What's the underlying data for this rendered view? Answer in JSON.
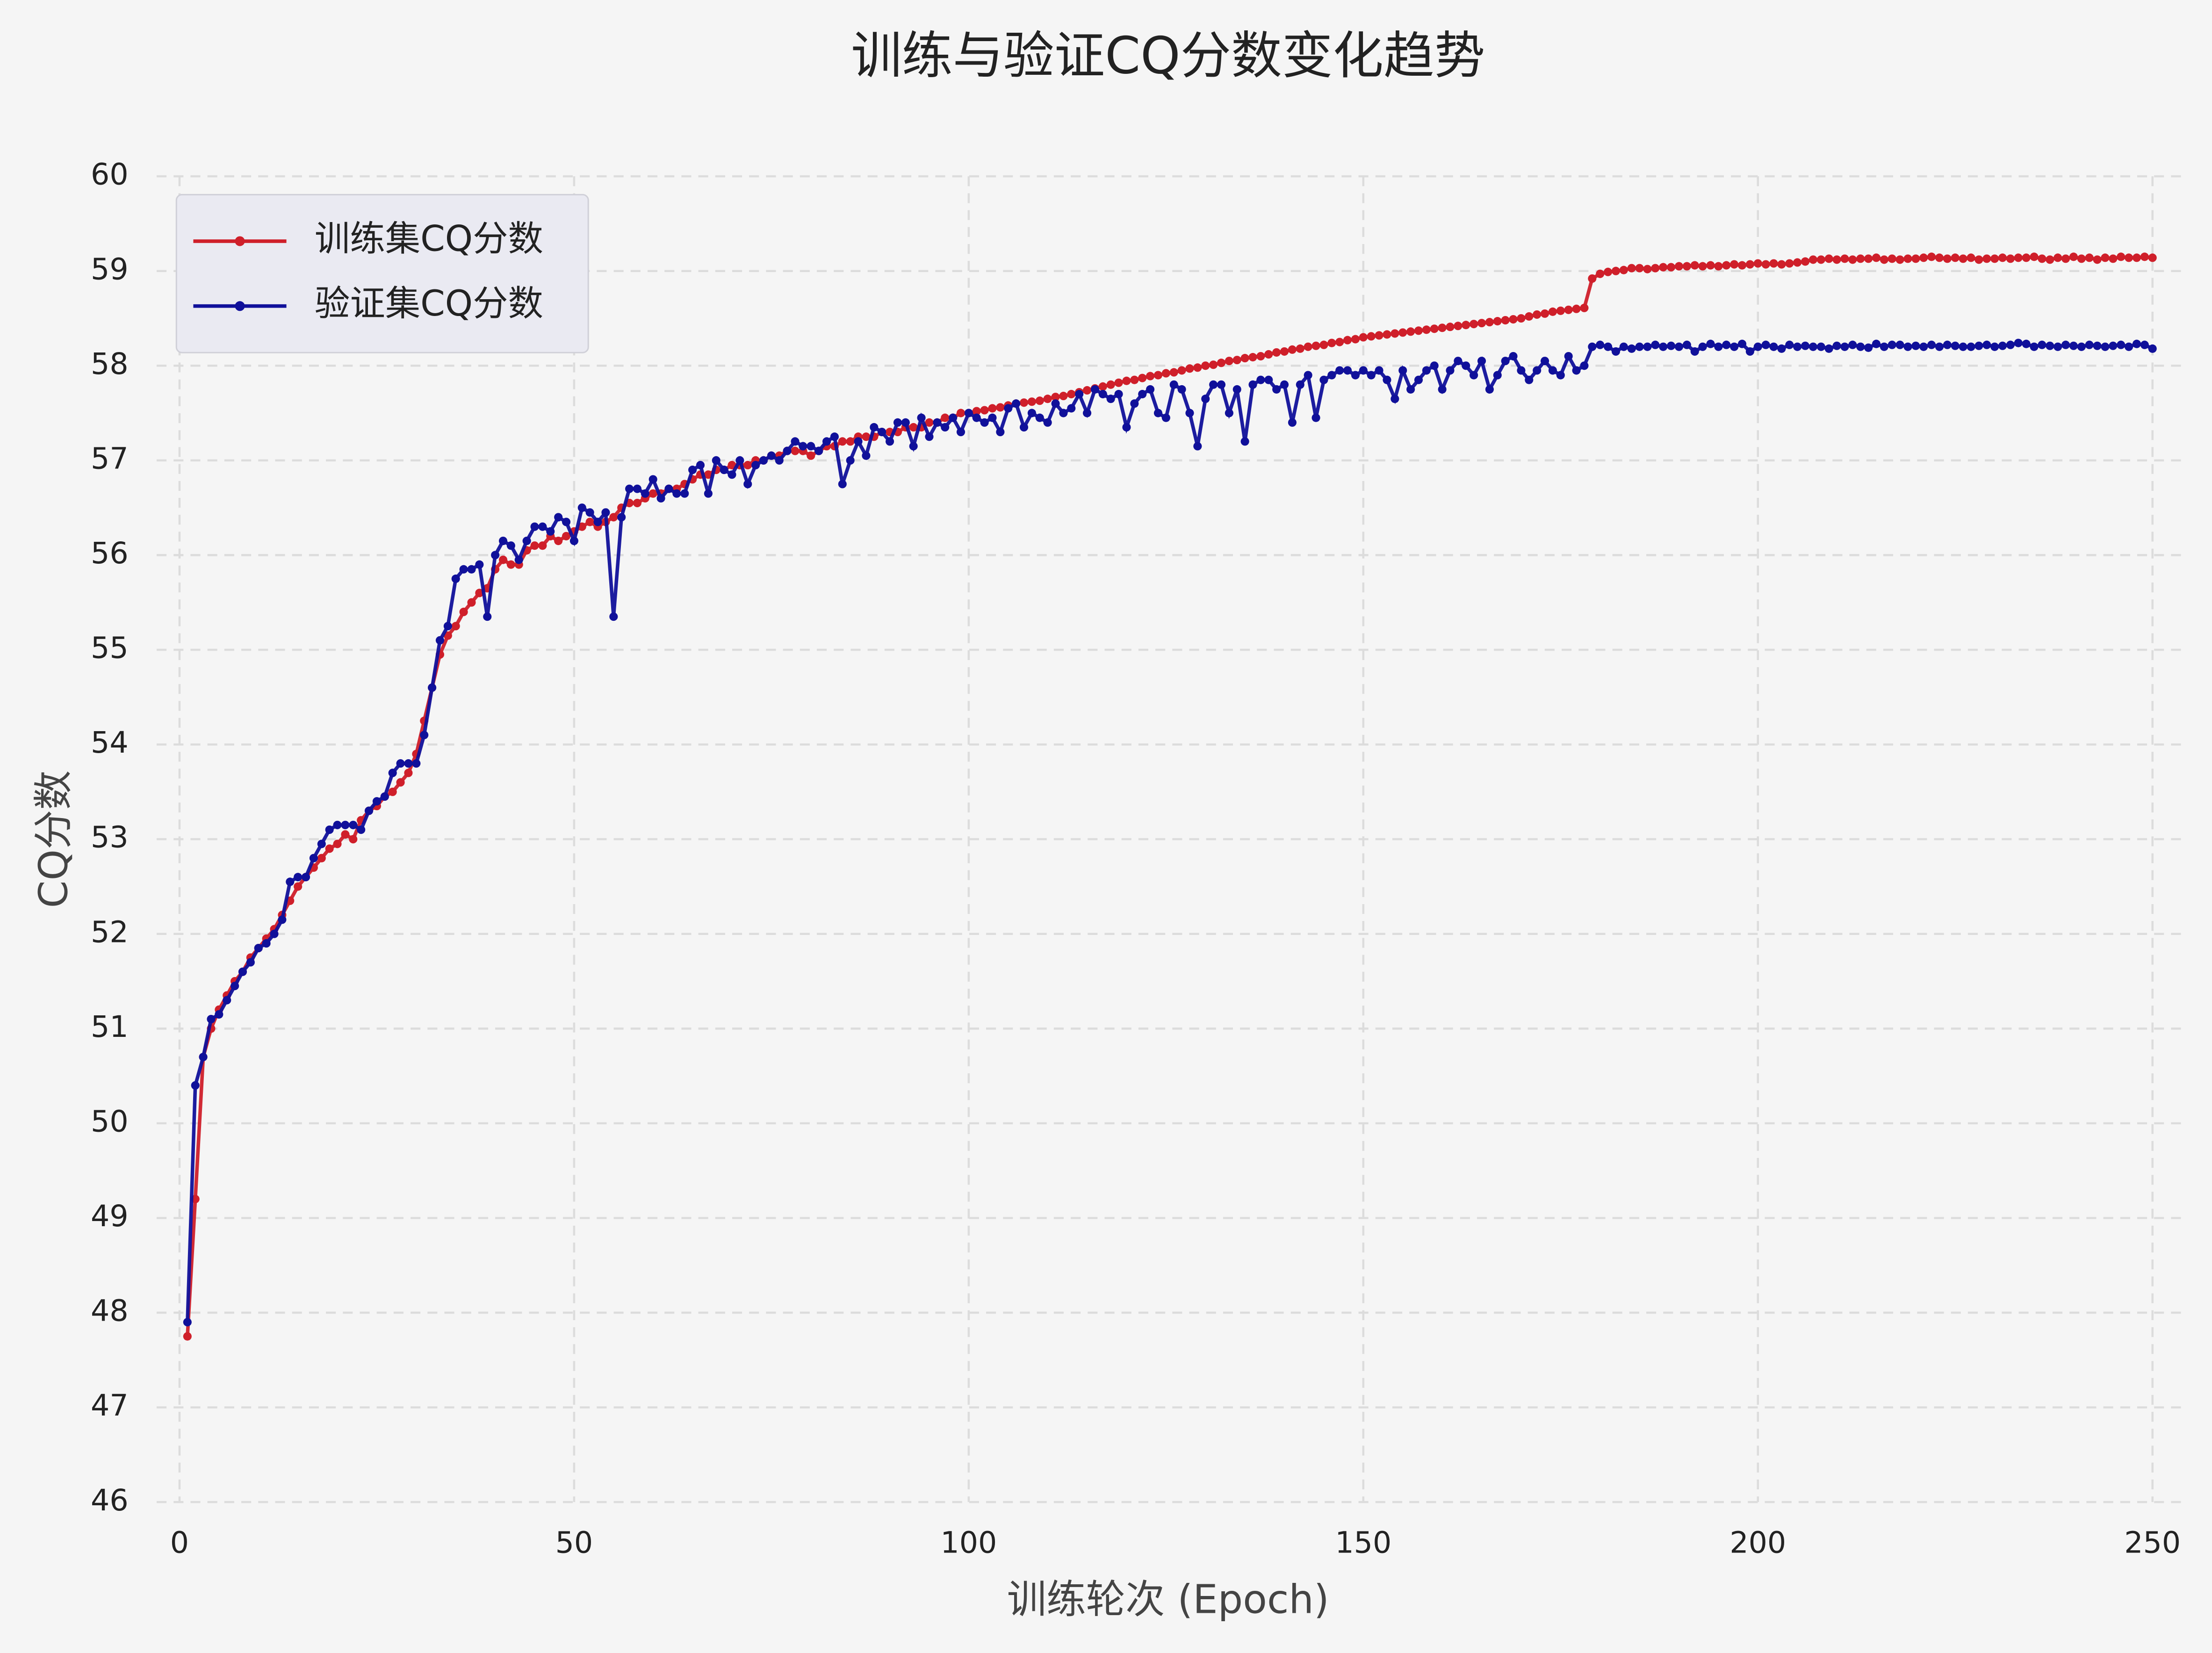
{
  "chart_data": {
    "type": "line",
    "title": "训练与验证CQ分数变化趋势",
    "x_label": "训练轮次 (Epoch)",
    "y_label": "CQ分数",
    "x": [
      1,
      2,
      3,
      4,
      5,
      6,
      7,
      8,
      9,
      10,
      11,
      12,
      13,
      14,
      15,
      16,
      17,
      18,
      19,
      20,
      21,
      22,
      23,
      24,
      25,
      26,
      27,
      28,
      29,
      30,
      31,
      32,
      33,
      34,
      35,
      36,
      37,
      38,
      39,
      40,
      41,
      42,
      43,
      44,
      45,
      46,
      47,
      48,
      49,
      50,
      51,
      52,
      53,
      54,
      55,
      56,
      57,
      58,
      59,
      60,
      61,
      62,
      63,
      64,
      65,
      66,
      67,
      68,
      69,
      70,
      71,
      72,
      73,
      74,
      75,
      76,
      77,
      78,
      79,
      80,
      81,
      82,
      83,
      84,
      85,
      86,
      87,
      88,
      89,
      90,
      91,
      92,
      93,
      94,
      95,
      96,
      97,
      98,
      99,
      100,
      101,
      102,
      103,
      104,
      105,
      106,
      107,
      108,
      109,
      110,
      111,
      112,
      113,
      114,
      115,
      116,
      117,
      118,
      119,
      120,
      121,
      122,
      123,
      124,
      125,
      126,
      127,
      128,
      129,
      130,
      131,
      132,
      133,
      134,
      135,
      136,
      137,
      138,
      139,
      140,
      141,
      142,
      143,
      144,
      145,
      146,
      147,
      148,
      149,
      150,
      151,
      152,
      153,
      154,
      155,
      156,
      157,
      158,
      159,
      160,
      161,
      162,
      163,
      164,
      165,
      166,
      167,
      168,
      169,
      170,
      171,
      172,
      173,
      174,
      175,
      176,
      177,
      178,
      179,
      180,
      181,
      182,
      183,
      184,
      185,
      186,
      187,
      188,
      189,
      190,
      191,
      192,
      193,
      194,
      195,
      196,
      197,
      198,
      199,
      200,
      201,
      202,
      203,
      204,
      205,
      206,
      207,
      208,
      209,
      210,
      211,
      212,
      213,
      214,
      215,
      216,
      217,
      218,
      219,
      220,
      221,
      222,
      223,
      224,
      225,
      226,
      227,
      228,
      229,
      230,
      231,
      232,
      233,
      234,
      235,
      236,
      237,
      238,
      239,
      240,
      241,
      242,
      243,
      244,
      245,
      246,
      247,
      248,
      249,
      250
    ],
    "series": [
      {
        "name": "训练集CQ分数",
        "color": "#cf1f2a",
        "values": [
          47.75,
          49.2,
          50.7,
          51.0,
          51.2,
          51.35,
          51.5,
          51.6,
          51.75,
          51.85,
          51.95,
          52.05,
          52.2,
          52.35,
          52.5,
          52.6,
          52.7,
          52.8,
          52.9,
          52.95,
          53.05,
          53.0,
          53.2,
          53.3,
          53.35,
          53.45,
          53.5,
          53.6,
          53.7,
          53.9,
          54.25,
          54.6,
          54.95,
          55.15,
          55.25,
          55.4,
          55.5,
          55.6,
          55.65,
          55.85,
          55.95,
          55.9,
          55.9,
          56.05,
          56.1,
          56.1,
          56.2,
          56.15,
          56.2,
          56.25,
          56.3,
          56.35,
          56.3,
          56.35,
          56.4,
          56.5,
          56.55,
          56.55,
          56.6,
          56.65,
          56.65,
          56.7,
          56.7,
          56.75,
          56.8,
          56.85,
          56.85,
          56.9,
          56.9,
          56.95,
          56.95,
          56.95,
          57.0,
          57.0,
          57.05,
          57.05,
          57.1,
          57.1,
          57.1,
          57.05,
          57.1,
          57.15,
          57.15,
          57.2,
          57.2,
          57.25,
          57.25,
          57.25,
          57.3,
          57.3,
          57.3,
          57.35,
          57.35,
          57.35,
          57.4,
          57.4,
          57.45,
          57.45,
          57.5,
          57.5,
          57.52,
          57.53,
          57.55,
          57.56,
          57.58,
          57.6,
          57.61,
          57.62,
          57.63,
          57.65,
          57.67,
          57.68,
          57.7,
          57.72,
          57.74,
          57.76,
          57.78,
          57.8,
          57.82,
          57.84,
          57.85,
          57.87,
          57.89,
          57.9,
          57.92,
          57.93,
          57.95,
          57.97,
          57.98,
          58.0,
          58.01,
          58.03,
          58.05,
          58.06,
          58.08,
          58.09,
          58.1,
          58.12,
          58.14,
          58.15,
          58.17,
          58.18,
          58.2,
          58.21,
          58.22,
          58.24,
          58.25,
          58.27,
          58.28,
          58.3,
          58.31,
          58.32,
          58.33,
          58.34,
          58.35,
          58.36,
          58.37,
          58.38,
          58.39,
          58.4,
          58.41,
          58.42,
          58.43,
          58.44,
          58.45,
          58.46,
          58.47,
          58.48,
          58.49,
          58.5,
          58.52,
          58.54,
          58.55,
          58.57,
          58.58,
          58.59,
          58.6,
          58.61,
          58.92,
          58.97,
          58.99,
          59.0,
          59.01,
          59.03,
          59.03,
          59.02,
          59.03,
          59.04,
          59.04,
          59.05,
          59.05,
          59.06,
          59.05,
          59.06,
          59.05,
          59.06,
          59.07,
          59.06,
          59.07,
          59.08,
          59.07,
          59.08,
          59.07,
          59.08,
          59.09,
          59.1,
          59.12,
          59.12,
          59.13,
          59.12,
          59.13,
          59.12,
          59.13,
          59.13,
          59.14,
          59.12,
          59.13,
          59.12,
          59.13,
          59.13,
          59.14,
          59.15,
          59.14,
          59.13,
          59.14,
          59.13,
          59.14,
          59.12,
          59.13,
          59.13,
          59.14,
          59.13,
          59.14,
          59.14,
          59.15,
          59.13,
          59.12,
          59.14,
          59.13,
          59.15,
          59.13,
          59.14,
          59.12,
          59.14,
          59.13,
          59.15,
          59.14,
          59.14,
          59.15,
          59.14
        ]
      },
      {
        "name": "验证集CQ分数",
        "color": "#10109a",
        "values": [
          47.9,
          50.4,
          50.7,
          51.1,
          51.15,
          51.3,
          51.45,
          51.6,
          51.7,
          51.85,
          51.9,
          52.0,
          52.15,
          52.55,
          52.6,
          52.6,
          52.8,
          52.95,
          53.1,
          53.15,
          53.15,
          53.15,
          53.1,
          53.3,
          53.4,
          53.45,
          53.7,
          53.8,
          53.8,
          53.8,
          54.1,
          54.6,
          55.1,
          55.25,
          55.75,
          55.85,
          55.85,
          55.9,
          55.35,
          56.0,
          56.15,
          56.1,
          55.95,
          56.15,
          56.3,
          56.3,
          56.25,
          56.4,
          56.35,
          56.15,
          56.5,
          56.45,
          56.35,
          56.45,
          55.35,
          56.4,
          56.7,
          56.7,
          56.65,
          56.8,
          56.6,
          56.7,
          56.65,
          56.65,
          56.9,
          56.95,
          56.65,
          57.0,
          56.9,
          56.85,
          57.0,
          56.75,
          56.95,
          57.0,
          57.05,
          57.0,
          57.1,
          57.2,
          57.15,
          57.15,
          57.1,
          57.2,
          57.25,
          56.75,
          57.0,
          57.2,
          57.05,
          57.35,
          57.3,
          57.2,
          57.4,
          57.4,
          57.15,
          57.45,
          57.25,
          57.4,
          57.35,
          57.45,
          57.3,
          57.5,
          57.45,
          57.4,
          57.45,
          57.3,
          57.55,
          57.6,
          57.35,
          57.5,
          57.45,
          57.4,
          57.6,
          57.5,
          57.55,
          57.7,
          57.5,
          57.75,
          57.7,
          57.65,
          57.7,
          57.35,
          57.6,
          57.7,
          57.75,
          57.5,
          57.45,
          57.8,
          57.75,
          57.5,
          57.15,
          57.65,
          57.8,
          57.8,
          57.5,
          57.75,
          57.2,
          57.8,
          57.85,
          57.85,
          57.75,
          57.8,
          57.4,
          57.8,
          57.9,
          57.45,
          57.85,
          57.9,
          57.95,
          57.95,
          57.9,
          57.95,
          57.9,
          57.95,
          57.85,
          57.65,
          57.95,
          57.75,
          57.85,
          57.95,
          58.0,
          57.75,
          57.95,
          58.05,
          58.0,
          57.9,
          58.05,
          57.75,
          57.9,
          58.05,
          58.1,
          57.95,
          57.85,
          57.95,
          58.05,
          57.95,
          57.9,
          58.1,
          57.95,
          58.0,
          58.2,
          58.22,
          58.2,
          58.15,
          58.2,
          58.18,
          58.2,
          58.2,
          58.22,
          58.2,
          58.21,
          58.2,
          58.22,
          58.15,
          58.2,
          58.23,
          58.2,
          58.22,
          58.2,
          58.23,
          58.15,
          58.2,
          58.22,
          58.2,
          58.18,
          58.22,
          58.2,
          58.21,
          58.2,
          58.2,
          58.18,
          58.21,
          58.2,
          58.22,
          58.2,
          58.19,
          58.23,
          58.2,
          58.22,
          58.22,
          58.2,
          58.21,
          58.2,
          58.22,
          58.2,
          58.22,
          58.21,
          58.2,
          58.2,
          58.21,
          58.22,
          58.2,
          58.21,
          58.22,
          58.24,
          58.23,
          58.2,
          58.22,
          58.21,
          58.2,
          58.22,
          58.21,
          58.2,
          58.22,
          58.21,
          58.2,
          58.21,
          58.22,
          58.2,
          58.23,
          58.22,
          58.18
        ]
      }
    ],
    "xlim": [
      -2.9,
      253.6
    ],
    "xticks": [
      0,
      50,
      100,
      150,
      200,
      250
    ],
    "ylim": [
      46,
      60
    ],
    "yticks": [
      46,
      47,
      48,
      49,
      50,
      51,
      52,
      53,
      54,
      55,
      56,
      57,
      58,
      59,
      60
    ],
    "grid": true,
    "legend": "upper left"
  }
}
